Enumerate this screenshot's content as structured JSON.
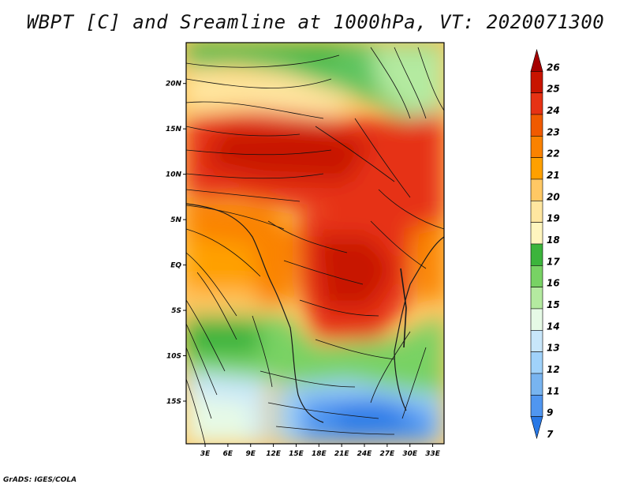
{
  "title": "WBPT [C] and Sreamline at 1000hPa, VT: 2020071300",
  "footer": "GrADS: IGES/COLA",
  "map": {
    "lat_labels": [
      "20N",
      "15N",
      "10N",
      "5N",
      "EQ",
      "5S",
      "10S",
      "15S"
    ],
    "lat_values": [
      20,
      15,
      10,
      5,
      0,
      -5,
      -10,
      -15
    ],
    "lon_labels": [
      "3E",
      "6E",
      "9E",
      "12E",
      "15E",
      "18E",
      "21E",
      "24E",
      "27E",
      "30E",
      "33E"
    ],
    "lon_values": [
      3,
      6,
      9,
      12,
      15,
      18,
      21,
      24,
      27,
      30,
      33
    ],
    "lat_range": [
      -19.7,
      24.5
    ],
    "lon_range": [
      0.5,
      34.5
    ]
  },
  "colorbar": {
    "labels": [
      "26",
      "25",
      "24",
      "23",
      "22",
      "21",
      "20",
      "19",
      "18",
      "17",
      "16",
      "15",
      "14",
      "13",
      "12",
      "11",
      "9",
      "7"
    ],
    "colors": [
      "#a50000",
      "#c81400",
      "#e63214",
      "#f05a00",
      "#fa8200",
      "#ffa000",
      "#ffc864",
      "#ffe6a0",
      "#fff5be",
      "#3cb43c",
      "#78d264",
      "#b4eaa0",
      "#e6fae6",
      "#c8e6fa",
      "#a0d2fa",
      "#78b4f0",
      "#5096f0",
      "#2878e6"
    ]
  }
}
